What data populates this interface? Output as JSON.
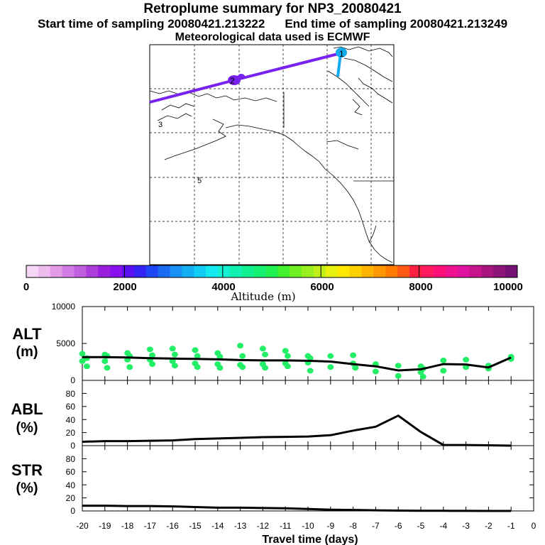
{
  "header": {
    "title": "Retroplume summary for NP3_20080421",
    "start_label": "Start time of sampling 20080421.213222",
    "end_label": "End time of sampling 20080421.213249",
    "met_label": "Meteorological data used is ECMWF"
  },
  "map": {
    "markers": [
      {
        "label": "1",
        "altitude": 3100
      },
      {
        "label": "2",
        "altitude": 2400
      },
      {
        "label": "3",
        "altitude": null
      },
      {
        "label": "5",
        "altitude": null
      }
    ],
    "colors": {
      "trajectory": "#7722ee",
      "trajectory_start": "#11aaee"
    }
  },
  "colorbar": {
    "tick_labels": [
      "0",
      "2000",
      "4000",
      "6000",
      "8000",
      "10000"
    ],
    "label": "Altitude (m)",
    "min": 0,
    "max": 10000,
    "colors": [
      "#f5d6f5",
      "#eebbee",
      "#e39ae8",
      "#d27be6",
      "#c05ee0",
      "#ad3cdc",
      "#9a1ede",
      "#8810ee",
      "#5a10f2",
      "#3324f5",
      "#1f46f5",
      "#1a6cf5",
      "#1a8ff5",
      "#12aff5",
      "#10cdf5",
      "#14e8f0",
      "#14f0d2",
      "#10f0b0",
      "#10f090",
      "#14f070",
      "#20f050",
      "#44f030",
      "#70f020",
      "#99f020",
      "#c0f018",
      "#e8f010",
      "#ffe800",
      "#ffd000",
      "#ffb400",
      "#ff9800",
      "#ff7c00",
      "#ff5a14",
      "#ff2040",
      "#ff1a60",
      "#ff1078",
      "#f01290",
      "#e012a0",
      "#c8148c",
      "#a8147e",
      "#8c1478",
      "#741070"
    ]
  },
  "chart_data": [
    {
      "type": "line",
      "panel": "ALT",
      "ylabel": "ALT (m)",
      "x": [
        -20,
        -19,
        -18,
        -17,
        -16,
        -15,
        -14,
        -13,
        -12,
        -11,
        -10,
        -9,
        -8,
        -7,
        -6,
        -5,
        -4,
        -3,
        -2,
        -1
      ],
      "values": [
        3150,
        3150,
        3100,
        3000,
        2950,
        2900,
        2850,
        2750,
        2700,
        2700,
        2650,
        2550,
        2200,
        1900,
        1350,
        1500,
        2200,
        2150,
        1750,
        3100
      ],
      "scatter": {
        "points": [
          [
            -20,
            3600
          ],
          [
            -20,
            2600
          ],
          [
            -19.8,
            3000
          ],
          [
            -19.8,
            1900
          ],
          [
            -19,
            3500
          ],
          [
            -19,
            2600
          ],
          [
            -18.9,
            3300
          ],
          [
            -18.9,
            1700
          ],
          [
            -18,
            3700
          ],
          [
            -18,
            2800
          ],
          [
            -17.9,
            3300
          ],
          [
            -17.9,
            1800
          ],
          [
            -17,
            4200
          ],
          [
            -17,
            2800
          ],
          [
            -16.9,
            3400
          ],
          [
            -16.9,
            2200
          ],
          [
            -16,
            4300
          ],
          [
            -16,
            2600
          ],
          [
            -15.9,
            3500
          ],
          [
            -15.9,
            2000
          ],
          [
            -15,
            4100
          ],
          [
            -15,
            2300
          ],
          [
            -14.9,
            3300
          ],
          [
            -14.9,
            1800
          ],
          [
            -14,
            3700
          ],
          [
            -14,
            2200
          ],
          [
            -13.9,
            3200
          ],
          [
            -13.9,
            1700
          ],
          [
            -13,
            4700
          ],
          [
            -13,
            2100
          ],
          [
            -12.9,
            3300
          ],
          [
            -12.9,
            1800
          ],
          [
            -12,
            4300
          ],
          [
            -12,
            2200
          ],
          [
            -11.9,
            3500
          ],
          [
            -11.9,
            1700
          ],
          [
            -11,
            4000
          ],
          [
            -11,
            2300
          ],
          [
            -10.9,
            3300
          ],
          [
            -10.9,
            1900
          ],
          [
            -10,
            3300
          ],
          [
            -10,
            2400
          ],
          [
            -9.9,
            3000
          ],
          [
            -9.9,
            1300
          ],
          [
            -9,
            3300
          ],
          [
            -9,
            1800
          ],
          [
            -8,
            3400
          ],
          [
            -8,
            2300
          ],
          [
            -7.9,
            1700
          ],
          [
            -7,
            2200
          ],
          [
            -7,
            1200
          ],
          [
            -6,
            2000
          ],
          [
            -6,
            600
          ],
          [
            -5,
            1900
          ],
          [
            -5,
            1100
          ],
          [
            -4.9,
            1600
          ],
          [
            -4.9,
            500
          ],
          [
            -4,
            2700
          ],
          [
            -4,
            1300
          ],
          [
            -3,
            2800
          ],
          [
            -3,
            1800
          ],
          [
            -2,
            2000
          ],
          [
            -2,
            1600
          ],
          [
            -1,
            3200
          ],
          [
            -1,
            2900
          ]
        ]
      },
      "yticks": [
        "0",
        "5000",
        "10000"
      ],
      "ylim": [
        0,
        10000
      ],
      "xlim": [
        -20,
        0
      ]
    },
    {
      "type": "line",
      "panel": "ABL",
      "ylabel": "ABL (%)",
      "x": [
        -20,
        -19,
        -18,
        -17,
        -16,
        -15,
        -14,
        -13,
        -12,
        -11,
        -10,
        -9,
        -8,
        -7,
        -6,
        -5,
        -4,
        -3,
        -2,
        -1
      ],
      "values": [
        6,
        7,
        7,
        7.5,
        8,
        10,
        11,
        12,
        13,
        13.5,
        14,
        16,
        23,
        29,
        46,
        21,
        1,
        1,
        0.5,
        0
      ],
      "yticks": [
        "0",
        "20",
        "40",
        "60",
        "80"
      ],
      "ylim": [
        0,
        100
      ],
      "xlim": [
        -20,
        0
      ]
    },
    {
      "type": "line",
      "panel": "STR",
      "ylabel": "STR (%)",
      "x": [
        -20,
        -19,
        -18,
        -17,
        -16,
        -15,
        -14,
        -13,
        -12,
        -11,
        -10,
        -9,
        -8,
        -7,
        -6,
        -5,
        -4,
        -3,
        -2,
        -1
      ],
      "values": [
        8,
        8,
        7.5,
        7.5,
        7,
        6,
        5,
        5,
        4.5,
        4,
        3,
        2,
        1.5,
        1,
        0.5,
        0.3,
        0.2,
        0.1,
        0,
        0
      ],
      "yticks": [
        "0",
        "20",
        "40",
        "60",
        "80"
      ],
      "ylim": [
        0,
        100
      ],
      "xlim": [
        -20,
        0
      ]
    }
  ],
  "xaxis": {
    "ticks": [
      "-20",
      "-19",
      "-18",
      "-17",
      "-16",
      "-15",
      "-14",
      "-13",
      "-12",
      "-11",
      "-10",
      "-9",
      "-8",
      "-7",
      "-6",
      "-5",
      "-4",
      "-3",
      "-2",
      "-1",
      "0"
    ],
    "label": "Travel time (days)"
  },
  "panel_labels": {
    "alt": [
      "ALT",
      "(m)"
    ],
    "abl": [
      "ABL",
      "(%)"
    ],
    "str": [
      "STR",
      "(%)"
    ]
  },
  "scatter_color": "#22ee66"
}
